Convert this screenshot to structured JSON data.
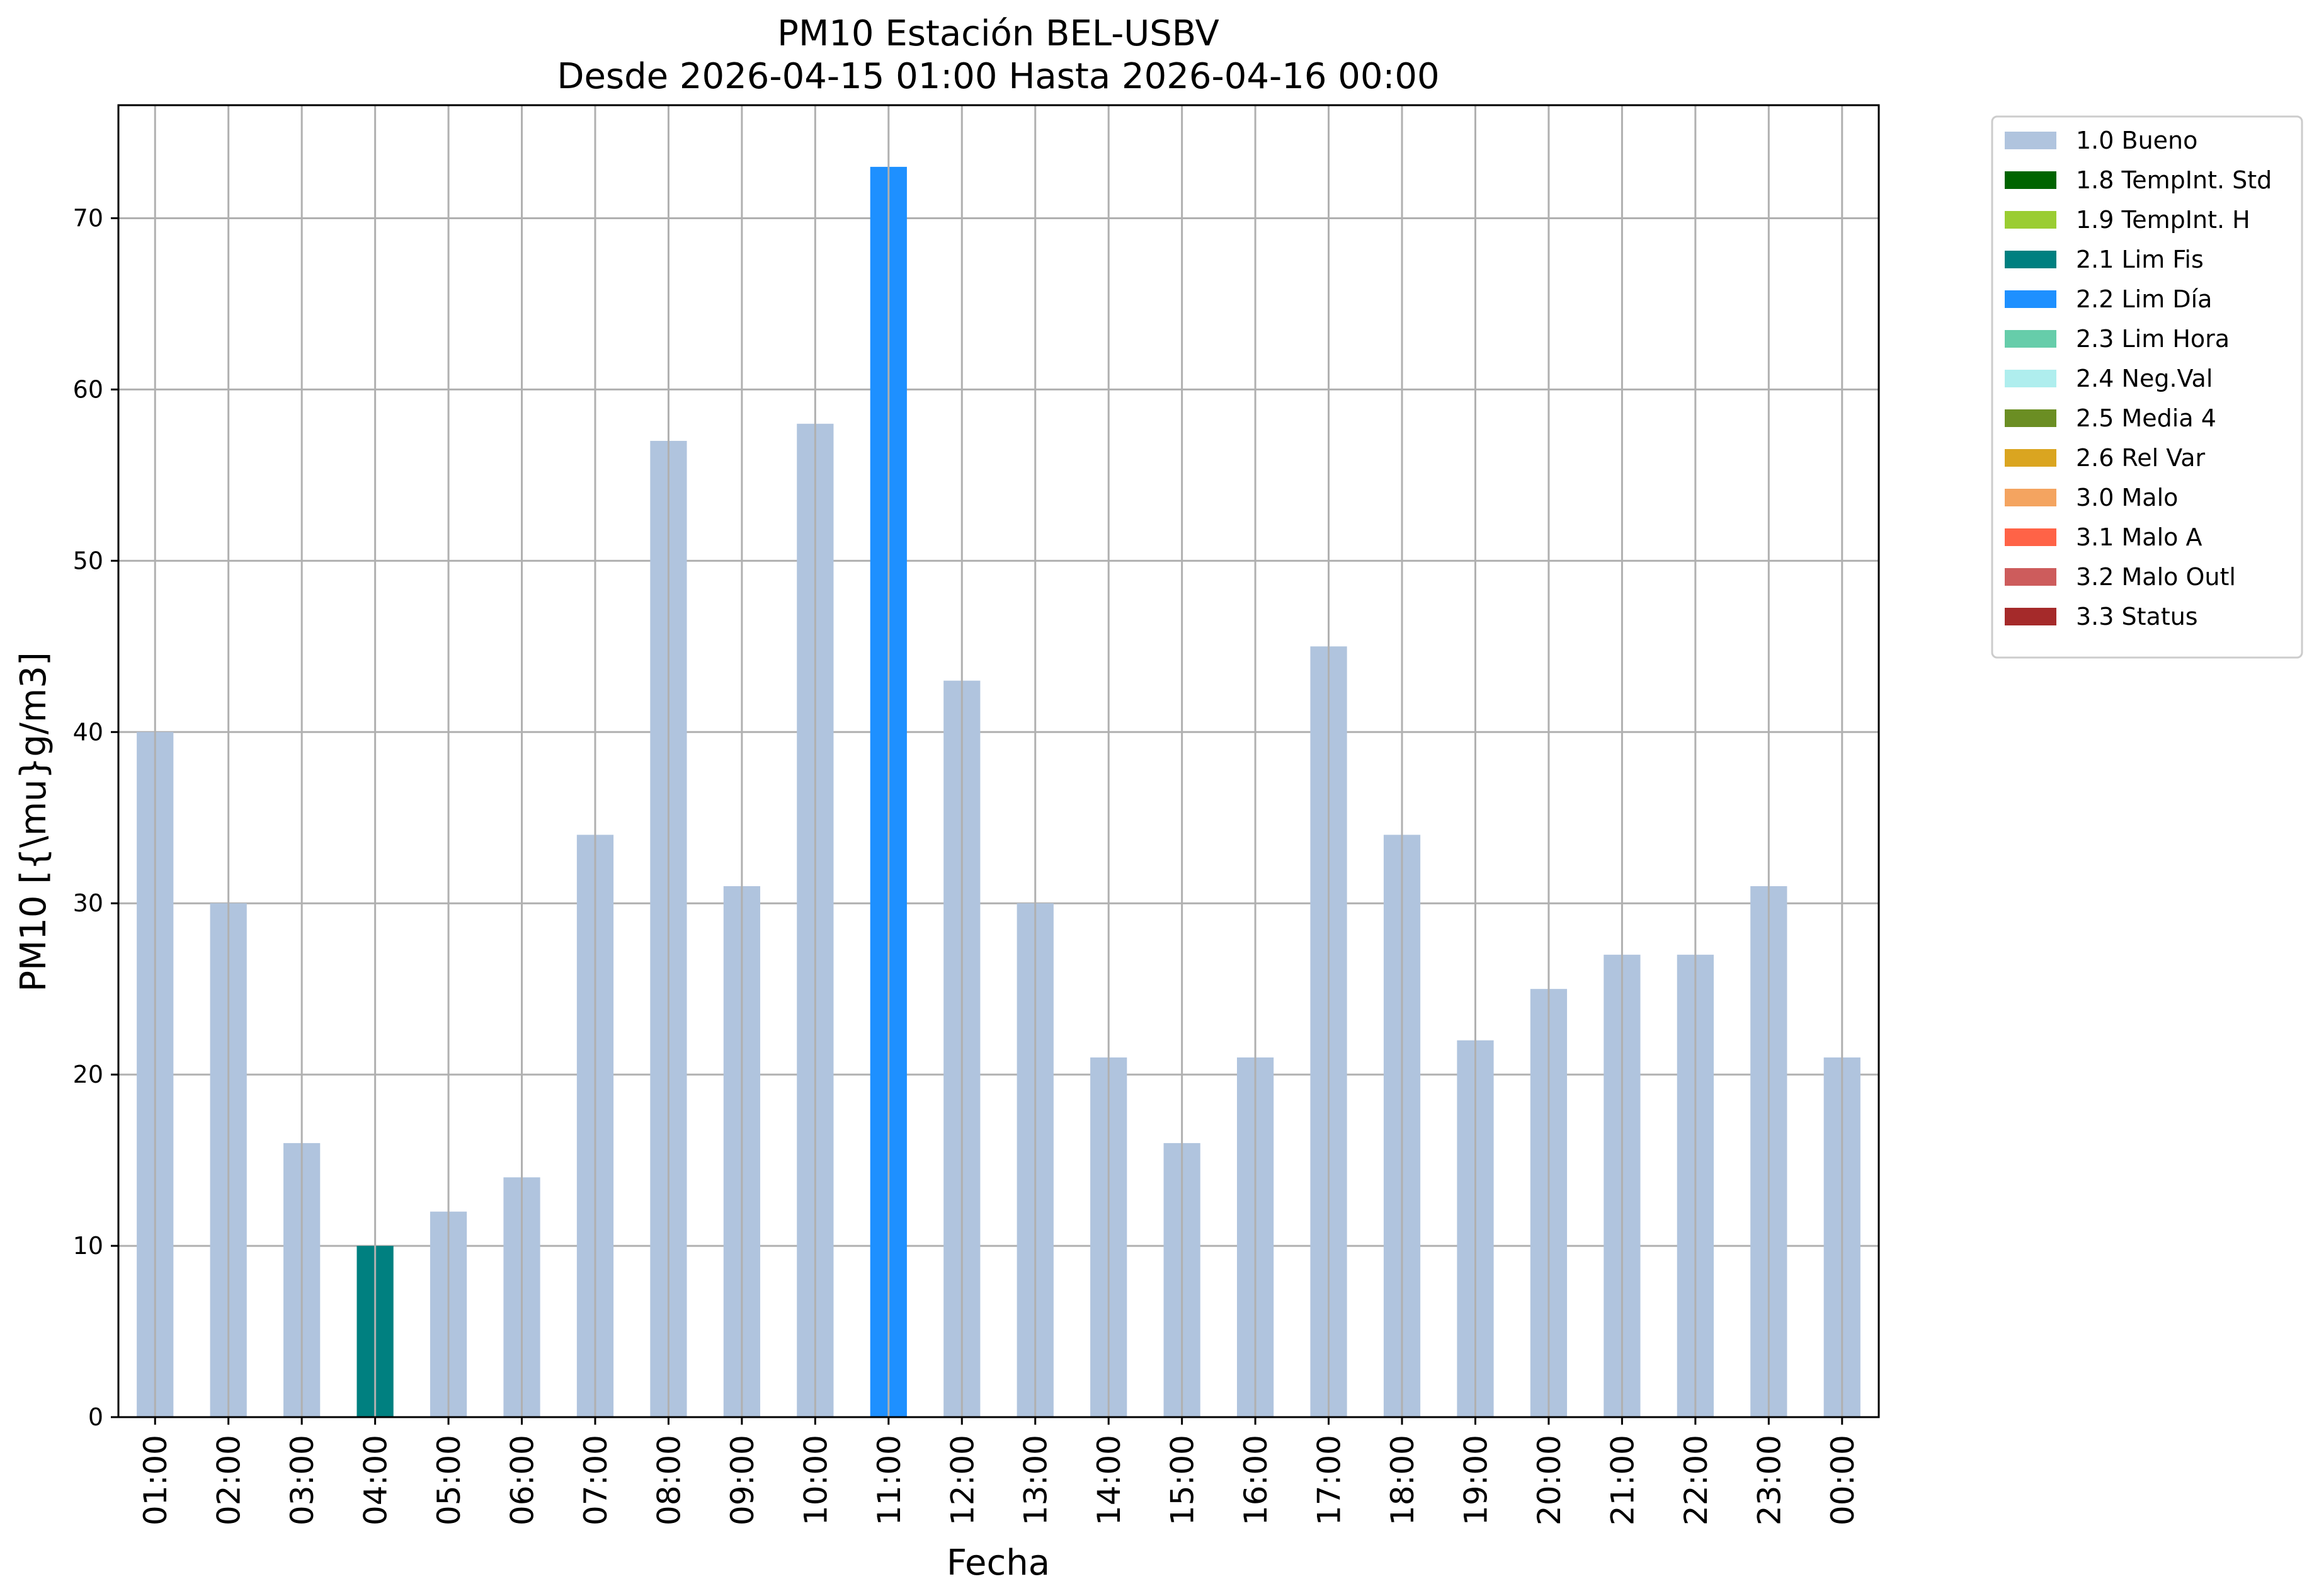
{
  "chart_data": {
    "type": "bar",
    "title": "PM10 Estación BEL-USBV",
    "subtitle": "Desde 2026-04-15 01:00 Hasta 2026-04-16 00:00",
    "xlabel": "Fecha",
    "ylabel": "PM10 [{\\mu}g/m3]",
    "ylim": [
      0,
      76.6
    ],
    "yticks": [
      0,
      10,
      20,
      30,
      40,
      50,
      60,
      70
    ],
    "grid": true,
    "legend_position": "outside-top-right",
    "categories": [
      "01:00",
      "02:00",
      "03:00",
      "04:00",
      "05:00",
      "06:00",
      "07:00",
      "08:00",
      "09:00",
      "10:00",
      "11:00",
      "12:00",
      "13:00",
      "14:00",
      "15:00",
      "16:00",
      "17:00",
      "18:00",
      "19:00",
      "20:00",
      "21:00",
      "22:00",
      "23:00",
      "00:00"
    ],
    "values": [
      40,
      30,
      16,
      10,
      12,
      14,
      34,
      57,
      31,
      58,
      73,
      43,
      30,
      21,
      16,
      21,
      45,
      34,
      22,
      25,
      27,
      27,
      31,
      21
    ],
    "flags": [
      "1.0 Bueno",
      "1.0 Bueno",
      "1.0 Bueno",
      "2.1 Lim Fis",
      "1.0 Bueno",
      "1.0 Bueno",
      "1.0 Bueno",
      "1.0 Bueno",
      "1.0 Bueno",
      "1.0 Bueno",
      "2.2 Lim Día",
      "1.0 Bueno",
      "1.0 Bueno",
      "1.0 Bueno",
      "1.0 Bueno",
      "1.0 Bueno",
      "1.0 Bueno",
      "1.0 Bueno",
      "1.0 Bueno",
      "1.0 Bueno",
      "1.0 Bueno",
      "1.0 Bueno",
      "1.0 Bueno",
      "1.0 Bueno"
    ],
    "legend": [
      {
        "label": "1.0 Bueno",
        "color": "#b0c4de"
      },
      {
        "label": "1.8 TempInt. Std",
        "color": "#006400"
      },
      {
        "label": "1.9 TempInt. H",
        "color": "#9acd32"
      },
      {
        "label": "2.1 Lim Fis",
        "color": "#008080"
      },
      {
        "label": "2.2 Lim Día",
        "color": "#1e90ff"
      },
      {
        "label": "2.3 Lim Hora",
        "color": "#66cdaa"
      },
      {
        "label": "2.4 Neg.Val",
        "color": "#afeeee"
      },
      {
        "label": "2.5 Media 4",
        "color": "#6b8e23"
      },
      {
        "label": "2.6 Rel Var",
        "color": "#daa520"
      },
      {
        "label": "3.0 Malo",
        "color": "#f4a460"
      },
      {
        "label": "3.1 Malo A",
        "color": "#ff6347"
      },
      {
        "label": "3.2 Malo Outl",
        "color": "#cd5c5c"
      },
      {
        "label": "3.3 Status",
        "color": "#a52a2a"
      }
    ]
  }
}
